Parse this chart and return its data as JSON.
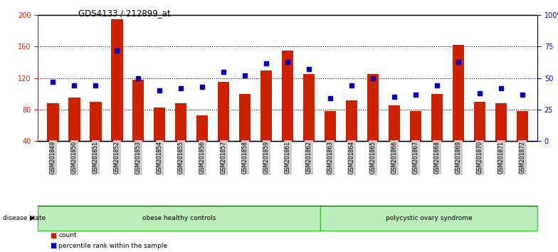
{
  "title": "GDS4133 / 212899_at",
  "samples": [
    "GSM201849",
    "GSM201850",
    "GSM201851",
    "GSM201852",
    "GSM201853",
    "GSM201854",
    "GSM201855",
    "GSM201856",
    "GSM201857",
    "GSM201858",
    "GSM201859",
    "GSM201861",
    "GSM201862",
    "GSM201863",
    "GSM201864",
    "GSM201865",
    "GSM201866",
    "GSM201867",
    "GSM201868",
    "GSM201869",
    "GSM201870",
    "GSM201871",
    "GSM201872"
  ],
  "counts": [
    88,
    95,
    90,
    195,
    118,
    83,
    88,
    73,
    115,
    100,
    130,
    155,
    125,
    78,
    92,
    125,
    85,
    78,
    100,
    162,
    90,
    88,
    78
  ],
  "percentile_ranks": [
    47,
    44,
    44,
    72,
    50,
    40,
    42,
    43,
    55,
    52,
    62,
    63,
    57,
    34,
    44,
    50,
    35,
    37,
    44,
    63,
    38,
    42,
    37
  ],
  "group1_label": "obese healthy controls",
  "group1_count": 13,
  "group2_label": "polycystic ovary syndrome",
  "group2_count": 10,
  "disease_state_label": "disease state",
  "ylim_left": [
    40,
    200
  ],
  "ylim_right": [
    0,
    100
  ],
  "yticks_left": [
    40,
    80,
    120,
    160,
    200
  ],
  "yticks_right": [
    0,
    25,
    50,
    75,
    100
  ],
  "ytick_labels_right": [
    "0",
    "25",
    "50",
    "75",
    "100%"
  ],
  "bar_color": "#cc2200",
  "dot_color": "#0000cc",
  "bg_color": "#ffffff",
  "left_axis_color": "#cc2200",
  "right_axis_color": "#0000cc",
  "legend_count_label": "count",
  "legend_pct_label": "percentile rank within the sample",
  "group_bg_color": "#bbeebb",
  "group_edge_color": "#33cc33",
  "xticklabel_bg": "#cccccc",
  "separator_color": "#333333"
}
